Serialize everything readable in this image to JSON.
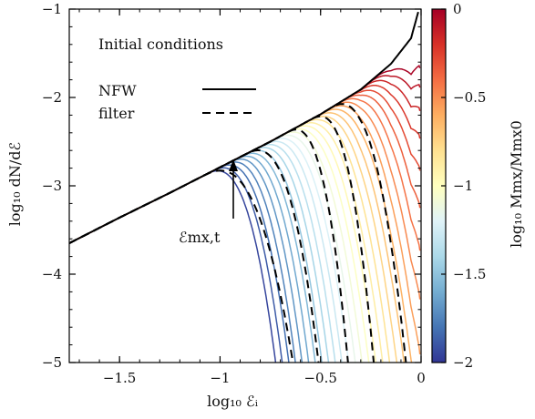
{
  "chart_data": {
    "type": "line",
    "xlabel": "log₁₀ ℰᵢ",
    "ylabel": "log₁₀ dN/dℰ",
    "xlim": [
      -1.75,
      0
    ],
    "ylim": [
      -5,
      -1
    ],
    "xticks": [
      "−1.5",
      "−1",
      "−0.5",
      "0"
    ],
    "yticks": [
      "−5",
      "−4",
      "−3",
      "−2",
      "−1"
    ],
    "legend": {
      "title": "Initial conditions",
      "entries": [
        {
          "label": "NFW",
          "style": "solid"
        },
        {
          "label": "filter",
          "style": "dashed"
        }
      ],
      "placement": "top-left"
    },
    "annotation": {
      "label": "ℰmx,t",
      "x": -0.95,
      "y": -3.1
    },
    "nfw_curve": {
      "x": [
        -1.75,
        -1.5,
        -1.25,
        -1.0,
        -0.75,
        -0.5,
        -0.3,
        -0.15,
        -0.05,
        -0.01
      ],
      "y": [
        -3.65,
        -3.36,
        -3.08,
        -2.79,
        -2.5,
        -2.19,
        -1.91,
        -1.62,
        -1.33,
        -1.0
      ]
    },
    "colorbar": {
      "label": "log₁₀ Mmx/Mmx0",
      "range": [
        -2,
        0
      ],
      "ticks": [
        "0",
        "−0.5",
        "−1",
        "−1.5",
        "−2"
      ],
      "colors": [
        "#313695",
        "#4575b4",
        "#74add1",
        "#abd9e9",
        "#e0f3f8",
        "#ffffbf",
        "#fee090",
        "#fdae61",
        "#f46d43",
        "#d73027",
        "#a50026"
      ]
    },
    "series_summary": {
      "count": 30,
      "log_mass_range": [
        -1.95,
        -0.02
      ],
      "peak_x_range": [
        -0.94,
        -0.1
      ],
      "note_style": "colored thin lines following NFW then falling steeply"
    },
    "filter_curves": [
      {
        "peak_x": -0.92,
        "drop_x": -0.64
      },
      {
        "peak_x": -0.74,
        "drop_x": -0.52
      },
      {
        "peak_x": -0.56,
        "drop_x": -0.38
      },
      {
        "peak_x": -0.44,
        "drop_x": -0.26
      },
      {
        "peak_x": -0.33,
        "drop_x": -0.12
      }
    ]
  }
}
